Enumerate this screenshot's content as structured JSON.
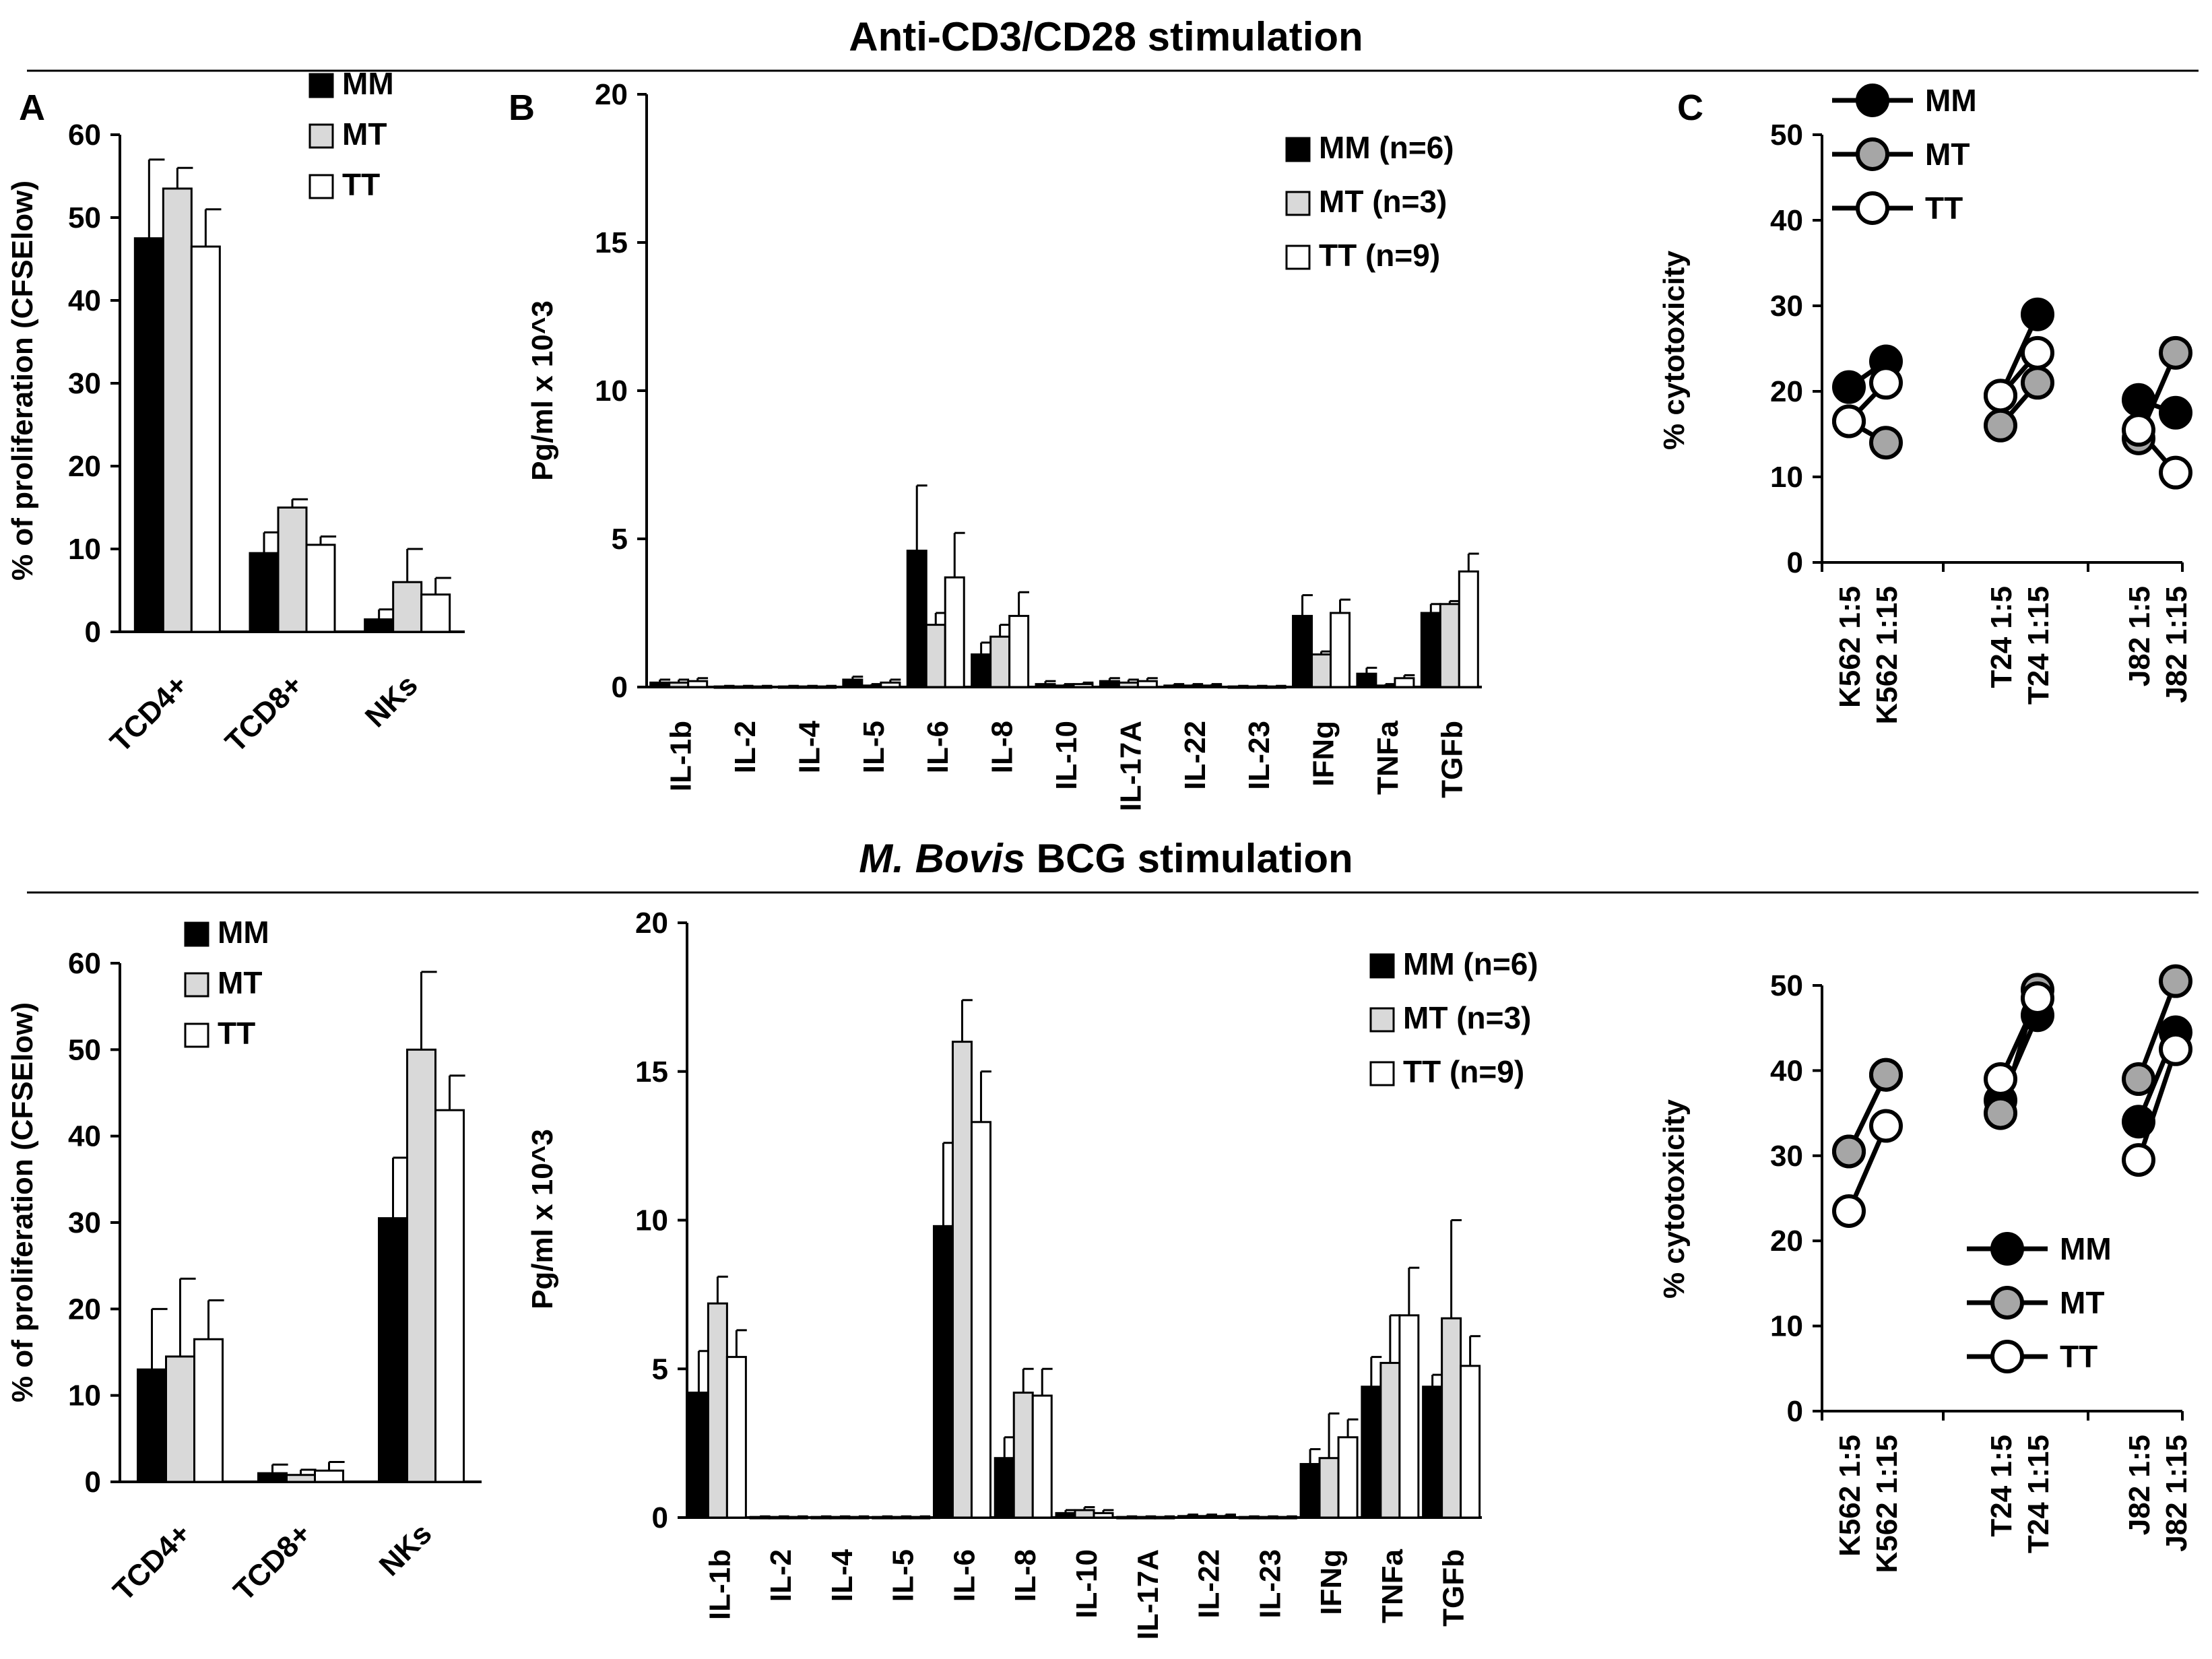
{
  "sections": [
    {
      "title": "Anti-CD3/CD28 stimulation"
    },
    {
      "title_italic": "M. Bovis",
      "title_rest": " BCG stimulation"
    }
  ],
  "panel_tags": [
    "A",
    "B",
    "C"
  ],
  "colors": {
    "MM": "#000000",
    "MT": "#d9d9d9",
    "TT": "#ffffff",
    "MT_dot": "#a6a6a6"
  },
  "chart_data": [
    {
      "id": "A_top",
      "type": "bar",
      "ylabel": "% of proliferation (CFSElow)",
      "ylim": [
        0,
        60
      ],
      "yticks": [
        0,
        10,
        20,
        30,
        40,
        50,
        60
      ],
      "categories": [
        "TCD4+",
        "TCD8+",
        "NKs"
      ],
      "legend_position": "top-right",
      "series": [
        {
          "name": "MM",
          "legend": "MM",
          "values": [
            47.5,
            9.5,
            1.5
          ],
          "errors": [
            9.5,
            2.5,
            1.2
          ]
        },
        {
          "name": "MT",
          "legend": "MT",
          "values": [
            53.5,
            15.0,
            6.0
          ],
          "errors": [
            2.5,
            1.0,
            4.0
          ]
        },
        {
          "name": "TT",
          "legend": "TT",
          "values": [
            46.5,
            10.5,
            4.5
          ],
          "errors": [
            4.5,
            1.0,
            2.0
          ]
        }
      ]
    },
    {
      "id": "B_top",
      "type": "bar",
      "ylabel": "Pg/ml x 10^3",
      "ylim": [
        0,
        20
      ],
      "yticks": [
        0,
        5,
        10,
        15,
        20
      ],
      "categories": [
        "IL-1b",
        "IL-2",
        "IL-4",
        "IL-5",
        "IL-6",
        "IL-8",
        "IL-10",
        "IL-17A",
        "IL-22",
        "IL-23",
        "IFNg",
        "TNFa",
        "TGFb"
      ],
      "legend_position": "top-right",
      "series": [
        {
          "name": "MM",
          "legend": "MM (n=6)",
          "values": [
            0.15,
            0.02,
            0.02,
            0.25,
            4.6,
            1.1,
            0.1,
            0.2,
            0.05,
            0.02,
            2.4,
            0.45,
            2.5
          ],
          "errors": [
            0.1,
            0.02,
            0.02,
            0.1,
            2.2,
            0.4,
            0.1,
            0.1,
            0.05,
            0.02,
            0.7,
            0.2,
            0.3
          ]
        },
        {
          "name": "MT",
          "legend": "MT (n=3)",
          "values": [
            0.15,
            0.02,
            0.02,
            0.05,
            2.1,
            1.7,
            0.05,
            0.15,
            0.05,
            0.02,
            1.1,
            0.05,
            2.8
          ],
          "errors": [
            0.1,
            0.02,
            0.02,
            0.05,
            0.4,
            0.4,
            0.05,
            0.1,
            0.05,
            0.02,
            0.1,
            0.05,
            0.1
          ]
        },
        {
          "name": "TT",
          "legend": "TT (n=9)",
          "values": [
            0.2,
            0.02,
            0.02,
            0.15,
            3.7,
            2.4,
            0.1,
            0.2,
            0.05,
            0.02,
            2.5,
            0.3,
            3.9
          ],
          "errors": [
            0.1,
            0.02,
            0.02,
            0.1,
            1.5,
            0.8,
            0.05,
            0.1,
            0.05,
            0.02,
            0.45,
            0.1,
            0.6
          ]
        }
      ]
    },
    {
      "id": "C_top",
      "type": "line",
      "ylabel": "% cytotoxicity",
      "ylim": [
        0,
        50
      ],
      "yticks": [
        0,
        10,
        20,
        30,
        40,
        50
      ],
      "x": [
        "K562 1:5",
        "K562 1:15",
        "T24 1:5",
        "T24 1:15",
        "J82 1:5",
        "J82 1:15"
      ],
      "legend_position": "top-left",
      "series": [
        {
          "name": "MM",
          "legend": "MM",
          "values": [
            20.5,
            23.5,
            19.5,
            29,
            19,
            17.5
          ]
        },
        {
          "name": "MT",
          "legend": "MT",
          "values": [
            16.5,
            14,
            16,
            21,
            14.5,
            24.5
          ]
        },
        {
          "name": "TT",
          "legend": "TT",
          "values": [
            16.5,
            21,
            19.5,
            24.5,
            15.5,
            10.5
          ]
        }
      ]
    },
    {
      "id": "A_bottom",
      "type": "bar",
      "ylabel": "% of proliferation (CFSElow)",
      "ylim": [
        0,
        60
      ],
      "yticks": [
        0,
        10,
        20,
        30,
        40,
        50,
        60
      ],
      "categories": [
        "TCD4+",
        "TCD8+",
        "NKs"
      ],
      "legend_position": "top-left",
      "series": [
        {
          "name": "MM",
          "legend": "MM",
          "values": [
            13,
            1.0,
            30.5
          ],
          "errors": [
            7,
            1.0,
            7
          ]
        },
        {
          "name": "MT",
          "legend": "MT",
          "values": [
            14.5,
            0.8,
            50
          ],
          "errors": [
            9,
            0.6,
            9
          ]
        },
        {
          "name": "TT",
          "legend": "TT",
          "values": [
            16.5,
            1.3,
            43
          ],
          "errors": [
            4.5,
            1.0,
            4
          ]
        }
      ]
    },
    {
      "id": "B_bottom",
      "type": "bar",
      "ylabel": "Pg/ml x 10^3",
      "ylim": [
        0,
        20
      ],
      "yticks": [
        0,
        5,
        10,
        15,
        20
      ],
      "categories": [
        "IL-1b",
        "IL-2",
        "IL-4",
        "IL-5",
        "IL-6",
        "IL-8",
        "IL-10",
        "IL-17A",
        "IL-22",
        "IL-23",
        "IFNg",
        "TNFa",
        "TGFb"
      ],
      "legend_position": "top-right",
      "series": [
        {
          "name": "MM",
          "legend": "MM (n=6)",
          "values": [
            4.2,
            0.02,
            0.02,
            0.02,
            9.8,
            2.0,
            0.15,
            0.02,
            0.05,
            0.02,
            1.8,
            4.4,
            4.4
          ],
          "errors": [
            1.4,
            0.02,
            0.02,
            0.02,
            2.8,
            0.7,
            0.1,
            0.02,
            0.05,
            0.02,
            0.5,
            1.0,
            0.4
          ]
        },
        {
          "name": "MT",
          "legend": "MT (n=3)",
          "values": [
            7.2,
            0.02,
            0.02,
            0.02,
            16.0,
            4.2,
            0.25,
            0.02,
            0.05,
            0.02,
            2.0,
            5.2,
            6.7
          ],
          "errors": [
            0.9,
            0.02,
            0.02,
            0.02,
            1.4,
            0.8,
            0.1,
            0.02,
            0.05,
            0.02,
            1.5,
            1.6,
            3.3
          ]
        },
        {
          "name": "TT",
          "legend": "TT (n=9)",
          "values": [
            5.4,
            0.02,
            0.02,
            0.02,
            13.3,
            4.1,
            0.15,
            0.02,
            0.05,
            0.02,
            2.7,
            6.8,
            5.1
          ],
          "errors": [
            0.9,
            0.02,
            0.02,
            0.02,
            1.7,
            0.9,
            0.1,
            0.02,
            0.05,
            0.02,
            0.6,
            1.6,
            1.0
          ]
        }
      ]
    },
    {
      "id": "C_bottom",
      "type": "line",
      "ylabel": "% cytotoxicity",
      "ylim": [
        0,
        50
      ],
      "yticks": [
        0,
        10,
        20,
        30,
        40,
        50
      ],
      "x": [
        "K562 1:5",
        "K562 1:15",
        "T24 1:5",
        "T24 1:15",
        "J82 1:5",
        "J82 1:15"
      ],
      "legend_position": "bottom-right",
      "series": [
        {
          "name": "MM",
          "legend": "MM",
          "values": [
            30.5,
            39.5,
            36.5,
            46.5,
            34,
            44.5
          ]
        },
        {
          "name": "MT",
          "legend": "MT",
          "values": [
            30.5,
            39.5,
            35,
            49.5,
            39,
            50.5
          ]
        },
        {
          "name": "TT",
          "legend": "TT",
          "values": [
            23.5,
            33.5,
            39,
            48.5,
            29.5,
            42.5
          ]
        }
      ]
    }
  ]
}
